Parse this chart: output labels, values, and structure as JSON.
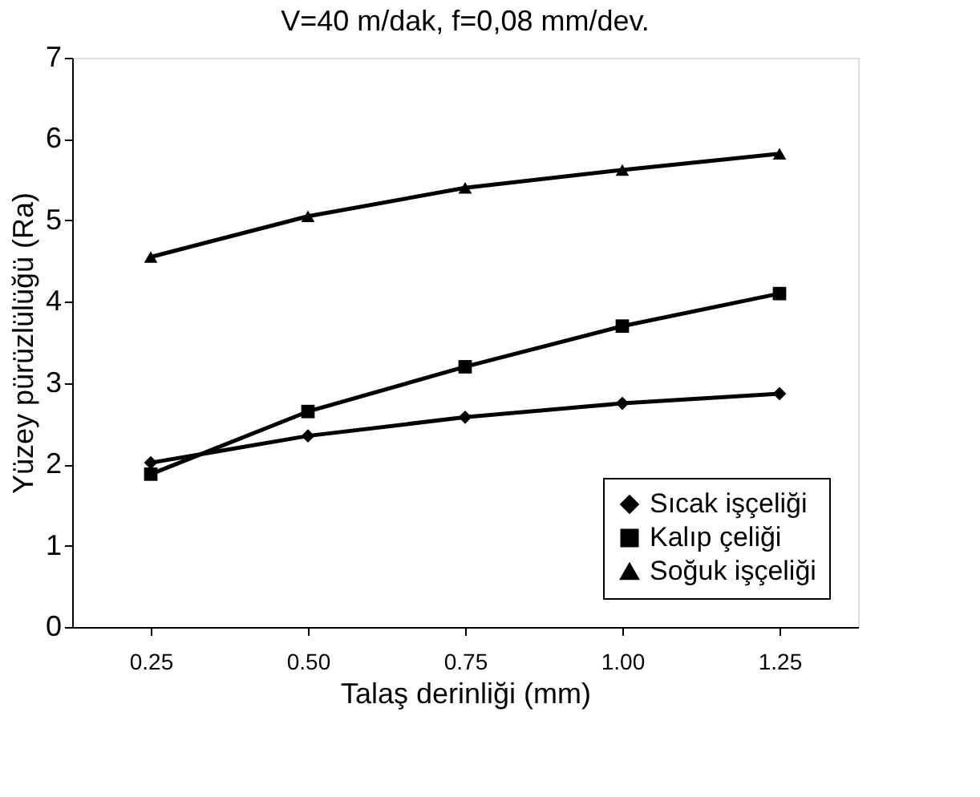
{
  "chart_data": {
    "type": "line",
    "title": "V=40 m/dak, f=0,08 mm/dev.",
    "xlabel": "Talaş derinliği (mm)",
    "ylabel": "Yüzey pürüzlülüğü (Ra)",
    "categories": [
      "0.25",
      "0.50",
      "0.75",
      "1.00",
      "1.25"
    ],
    "series": [
      {
        "name": "Sıcak işçeliği",
        "color": "#000000",
        "marker": "diamond",
        "values": [
          2.02,
          2.35,
          2.58,
          2.75,
          2.87
        ]
      },
      {
        "name": "Kalıp çeliği",
        "color": "#000000",
        "marker": "square",
        "values": [
          1.88,
          2.65,
          3.2,
          3.7,
          4.1
        ]
      },
      {
        "name": "Soğuk işçeliği",
        "color": "#000000",
        "marker": "triangle",
        "values": [
          4.55,
          5.05,
          5.4,
          5.62,
          5.82
        ]
      }
    ],
    "ylim": [
      0,
      7
    ],
    "yticks": [
      0,
      1,
      2,
      3,
      4,
      5,
      6,
      7
    ],
    "grid": false,
    "legend": "bottom right",
    "line_style": "solid"
  }
}
